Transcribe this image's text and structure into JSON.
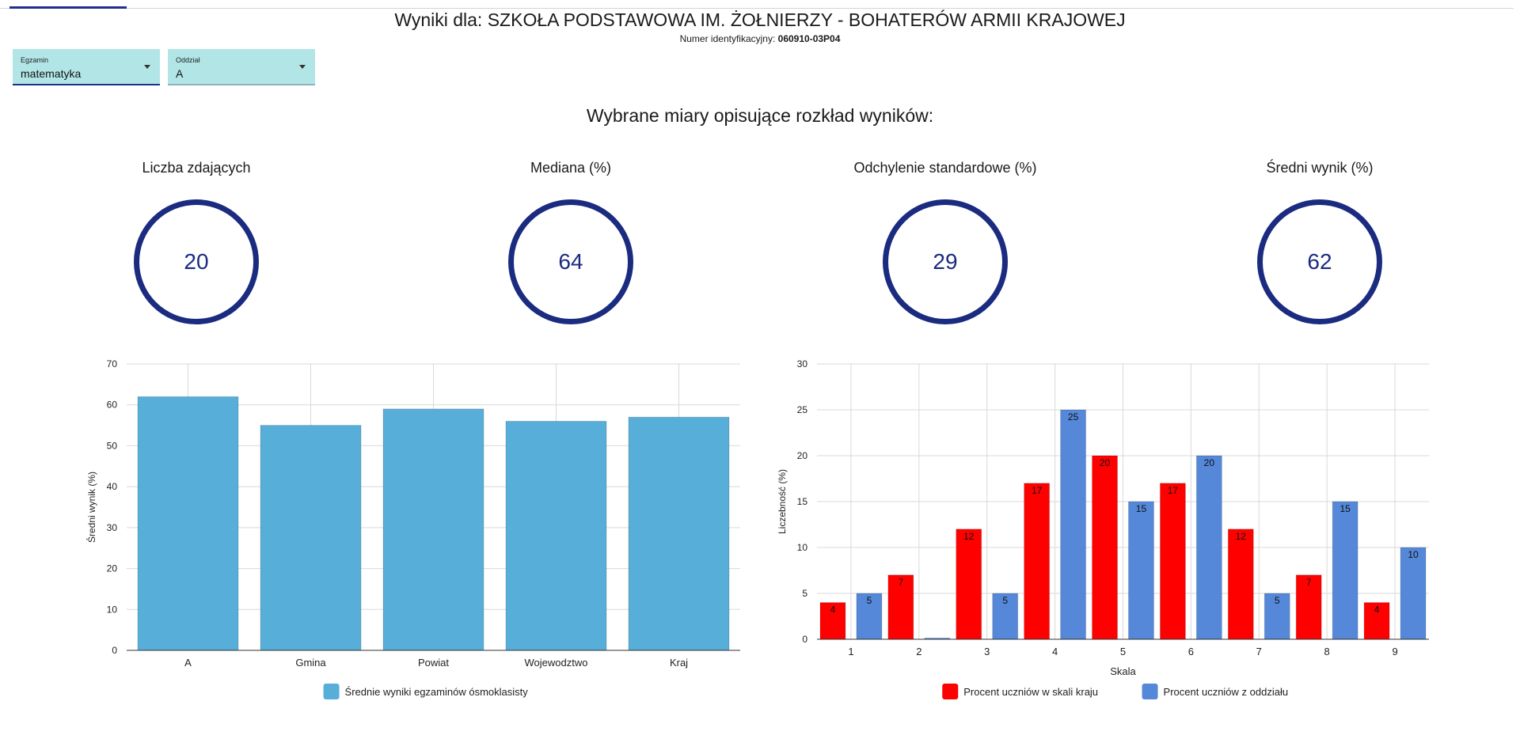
{
  "header": {
    "title": "Wyniki dla: SZKOŁA PODSTAWOWA IM. ŻOŁNIERZY - BOHATERÓW ARMII KRAJOWEJ",
    "id_label": "Numer identyfikacyjny:",
    "id_value": "060910-03P04"
  },
  "filters": {
    "exam": {
      "label": "Egzamin",
      "value": "matematyka"
    },
    "class": {
      "label": "Oddział",
      "value": "A"
    }
  },
  "section_title": "Wybrane miary opisujące rozkład wyników:",
  "stats": [
    {
      "label": "Liczba zdających",
      "value": "20"
    },
    {
      "label": "Mediana (%)",
      "value": "64"
    },
    {
      "label": "Odchylenie standardowe (%)",
      "value": "29"
    },
    {
      "label": "Średni wynik (%)",
      "value": "62"
    }
  ],
  "colors": {
    "ring": "#1a2b80",
    "bar_single": "#57aed9",
    "bar_red": "#ff0000",
    "bar_blue": "#5588d9"
  },
  "chart_data": [
    {
      "type": "bar",
      "categories": [
        "A",
        "Gmina",
        "Powiat",
        "Wojewodztwo",
        "Kraj"
      ],
      "series": [
        {
          "name": "Średnie wyniki egzaminów ósmoklasisty",
          "values": [
            62,
            55,
            59,
            56,
            57
          ]
        }
      ],
      "xlabel": "",
      "ylabel": "Średni wynik (%)",
      "ylim": [
        0,
        70
      ],
      "yticks": [
        0,
        10,
        20,
        30,
        40,
        50,
        60,
        70
      ],
      "grid": true,
      "legend": "bottom"
    },
    {
      "type": "bar",
      "categories": [
        "1",
        "2",
        "3",
        "4",
        "5",
        "6",
        "7",
        "8",
        "9"
      ],
      "series": [
        {
          "name": "Procent uczniów w skali kraju",
          "values": [
            4,
            7,
            12,
            17,
            20,
            17,
            12,
            7,
            4
          ]
        },
        {
          "name": "Procent uczniów z oddziału",
          "values": [
            5,
            0,
            5,
            25,
            15,
            20,
            5,
            15,
            10
          ]
        }
      ],
      "xlabel": "Skala",
      "ylabel": "Liczebność (%)",
      "ylim": [
        0,
        30
      ],
      "yticks": [
        0,
        5,
        10,
        15,
        20,
        25,
        30
      ],
      "grid": true,
      "legend": "bottom"
    }
  ]
}
